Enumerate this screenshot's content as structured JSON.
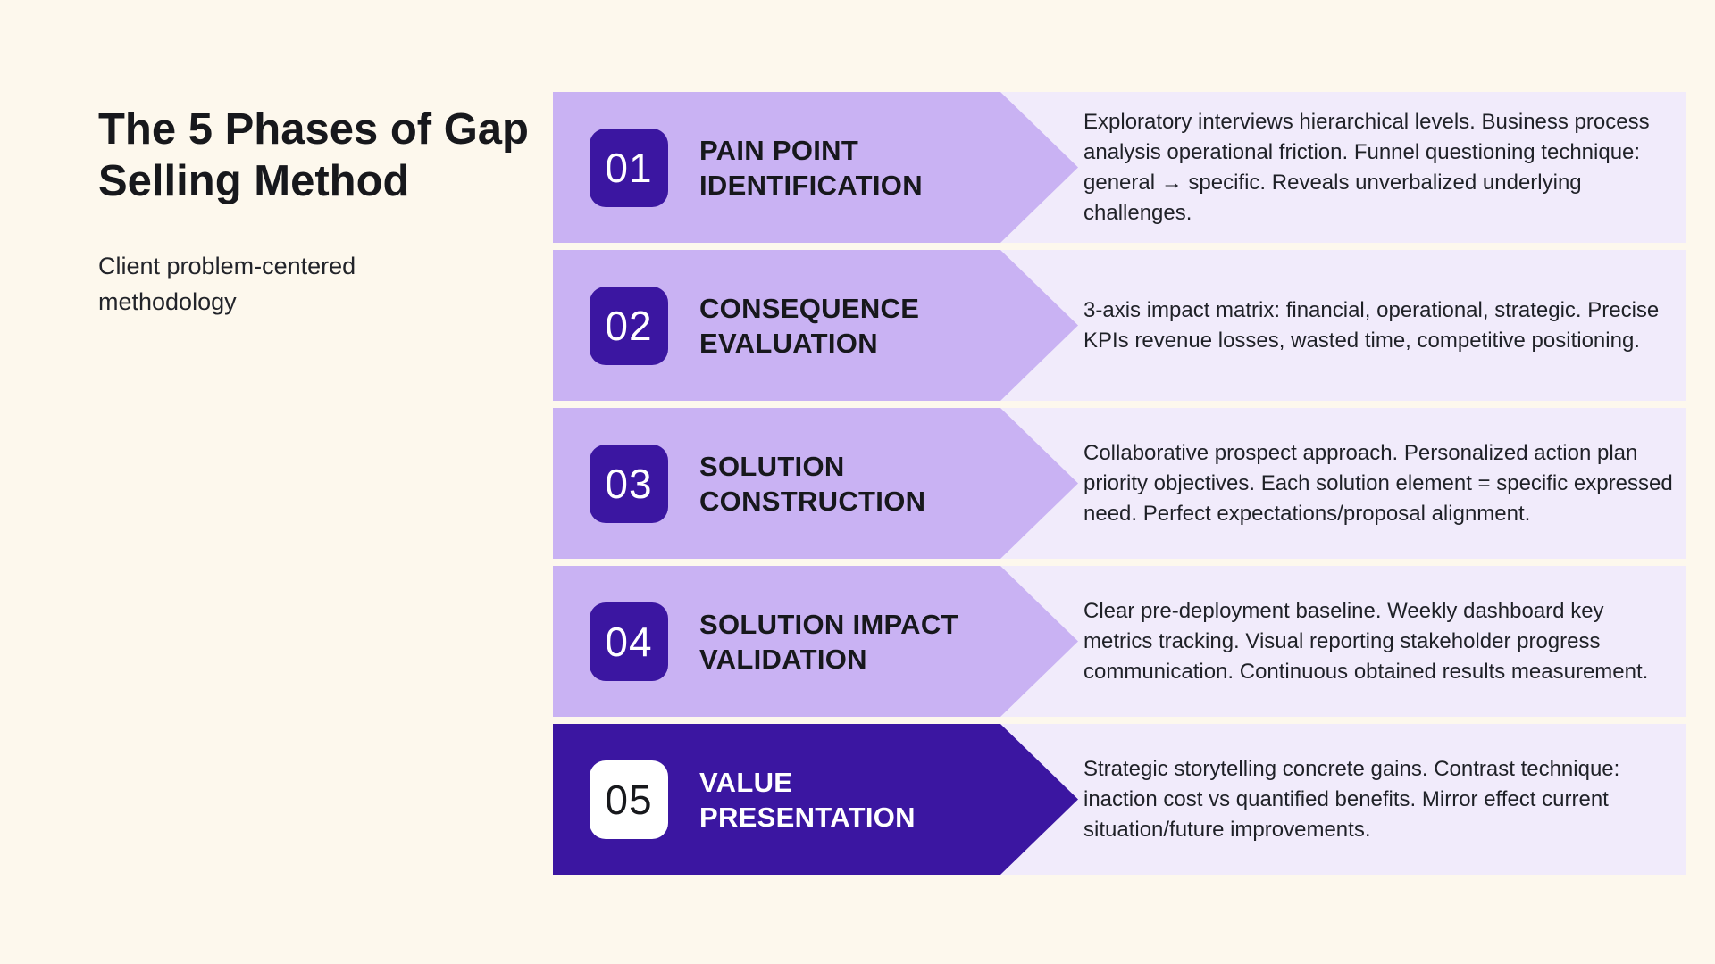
{
  "header": {
    "title": "The 5 Phases of Gap Selling Method",
    "subtitle": "Client problem-centered methodology"
  },
  "colors": {
    "background_cream": "#FDF8ED",
    "arrow_light_purple": "#C9B2F3",
    "description_band_lavender": "#F1EBFB",
    "accent_dark_purple": "#3B16A1",
    "text_dark": "#17181C",
    "text_white": "#FFFFFF"
  },
  "phases": [
    {
      "number": "01",
      "title": "PAIN POINT IDENTIFICATION",
      "description": "Exploratory interviews hierarchical levels. Business process analysis operational friction. Funnel questioning technique: general → specific. Reveals unverbalized underlying challenges.",
      "highlighted": false
    },
    {
      "number": "02",
      "title": "CONSEQUENCE EVALUATION",
      "description": "3-axis impact matrix: financial, operational, strategic. Precise KPIs revenue losses, wasted time, competitive positioning.",
      "highlighted": false
    },
    {
      "number": "03",
      "title": "SOLUTION CONSTRUCTION",
      "description": "Collaborative prospect approach. Personalized action plan priority objectives. Each solution element = specific expressed need. Perfect expectations/proposal alignment.",
      "highlighted": false
    },
    {
      "number": "04",
      "title": "SOLUTION IMPACT VALIDATION",
      "description": "Clear pre-deployment baseline. Weekly dashboard key metrics tracking. Visual reporting stakeholder progress communication. Continuous obtained results measurement.",
      "highlighted": false
    },
    {
      "number": "05",
      "title": "VALUE PRESENTATION",
      "description": "Strategic storytelling concrete gains. Contrast technique: inaction cost vs quantified benefits. Mirror effect current situation/future improvements.",
      "highlighted": true
    }
  ]
}
